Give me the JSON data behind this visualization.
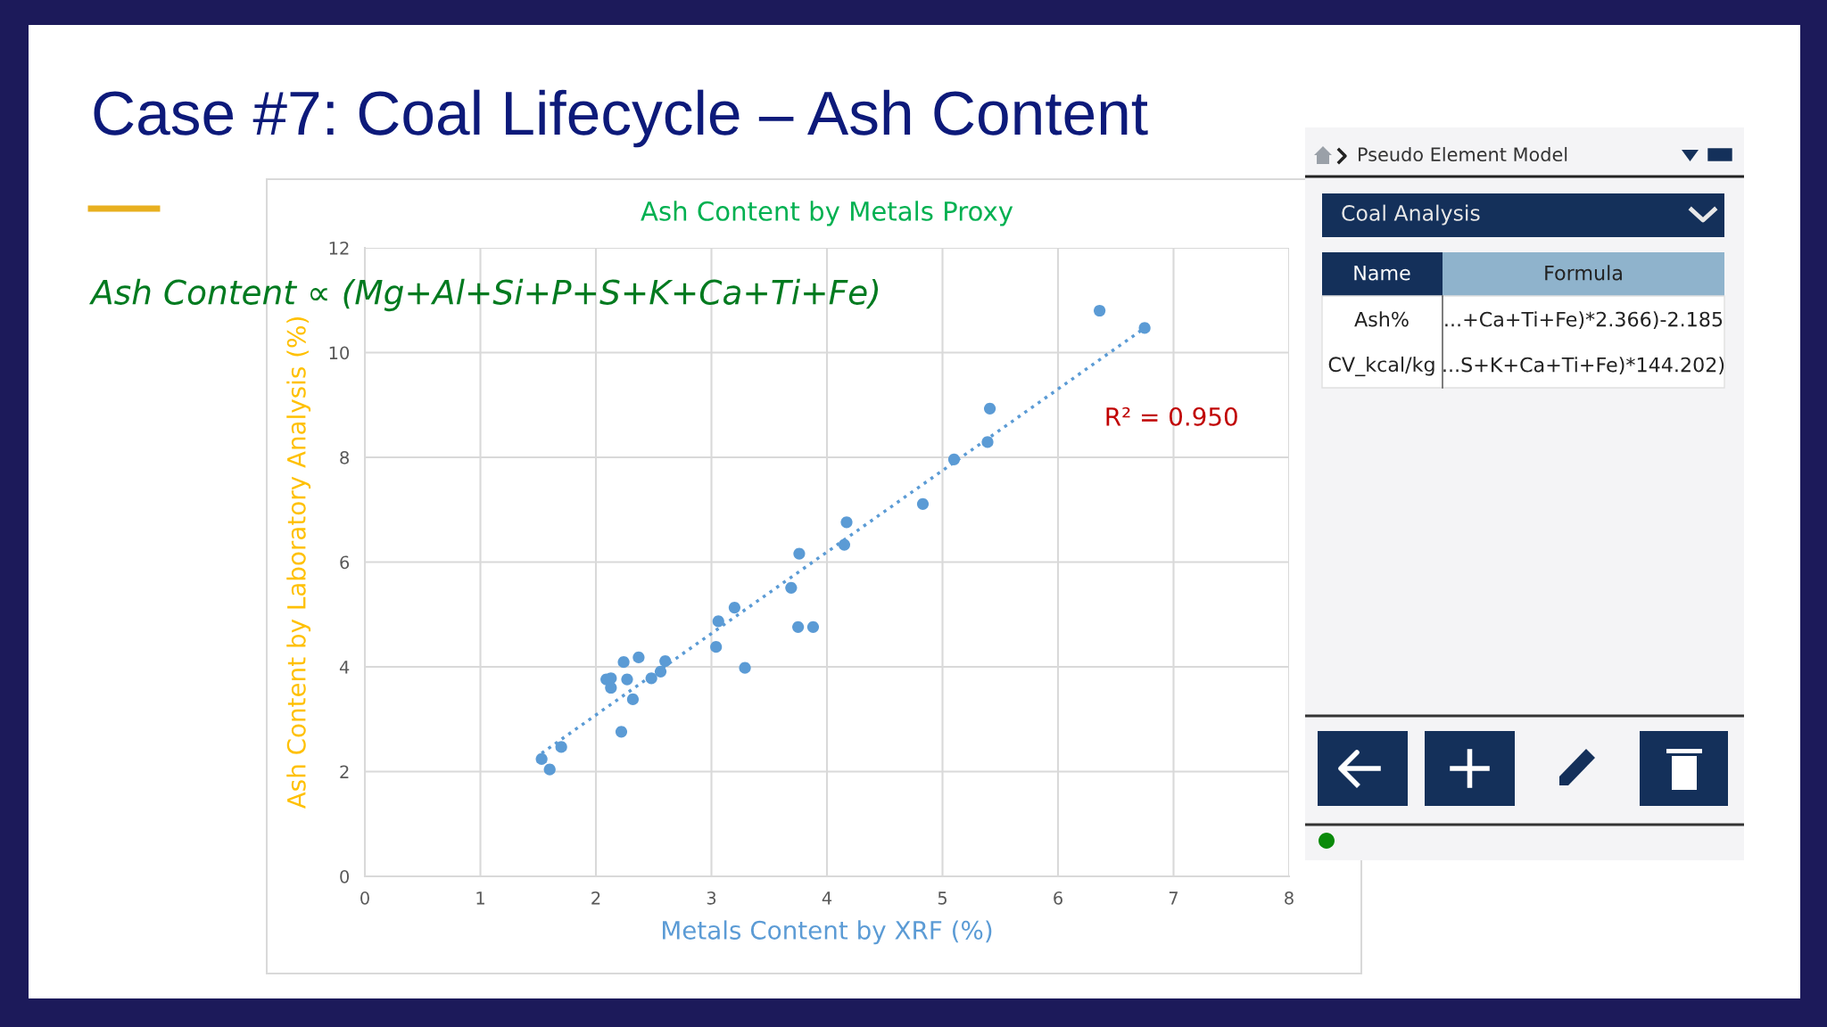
{
  "chart_data": [
    {
      "type": "scatter",
      "title": "Ash Content by Metals Proxy",
      "xlabel": "Metals Content by XRF (%)",
      "ylabel": "Ash Content by Laboratory Analysis (%)",
      "annotations": [
        "Case #7: Coal Lifecycle – Ash Content",
        "Ash Content ∝ (Mg+Al+Si+P+S+K+Ca+Ti+Fe)",
        "R² = 0.950"
      ],
      "xlim": [
        0,
        8
      ],
      "xticks": [
        0,
        1,
        2,
        3,
        4,
        5,
        6,
        7,
        8
      ],
      "ylim": [
        0,
        12
      ],
      "yticks": [
        0,
        2,
        4,
        6,
        8,
        10,
        12
      ],
      "grid": true,
      "legend": false,
      "series": [
        {
          "type": "scatter",
          "color": "#5b9bd5",
          "marker": "circle",
          "x": [
            1.53,
            1.6,
            1.7,
            2.22,
            2.09,
            2.13,
            2.13,
            2.24,
            2.27,
            2.32,
            2.37,
            2.48,
            2.56,
            2.6,
            3.04,
            3.06,
            3.2,
            3.29,
            3.69,
            3.75,
            3.88,
            3.76,
            4.15,
            4.17,
            4.83,
            5.1,
            5.39,
            5.41,
            6.36,
            6.75
          ],
          "values": [
            2.24,
            2.04,
            2.47,
            2.76,
            3.76,
            3.78,
            3.6,
            4.09,
            3.76,
            3.38,
            4.18,
            3.78,
            3.91,
            4.11,
            4.38,
            4.87,
            5.13,
            3.98,
            5.51,
            4.76,
            4.76,
            6.16,
            6.33,
            6.76,
            7.11,
            7.96,
            8.29,
            8.93,
            10.8,
            10.47
          ]
        },
        {
          "type": "line",
          "color": "#5b9bd5",
          "line_style": "dotted",
          "marker": "none",
          "x": [
            1.53,
            6.75
          ],
          "values": [
            2.35,
            10.47
          ]
        }
      ]
    },
    {
      "type": "other",
      "title": "Pseudo Element Model",
      "annotations": [
        "Coal Analysis",
        "Name",
        "Formula",
        "Ash%",
        "...+Ca+Ti+Fe)*2.366)-2.185",
        "CV_kcal/kg",
        "...S+K+Ca+Ti+Fe)*144.202)"
      ]
    }
  ]
}
